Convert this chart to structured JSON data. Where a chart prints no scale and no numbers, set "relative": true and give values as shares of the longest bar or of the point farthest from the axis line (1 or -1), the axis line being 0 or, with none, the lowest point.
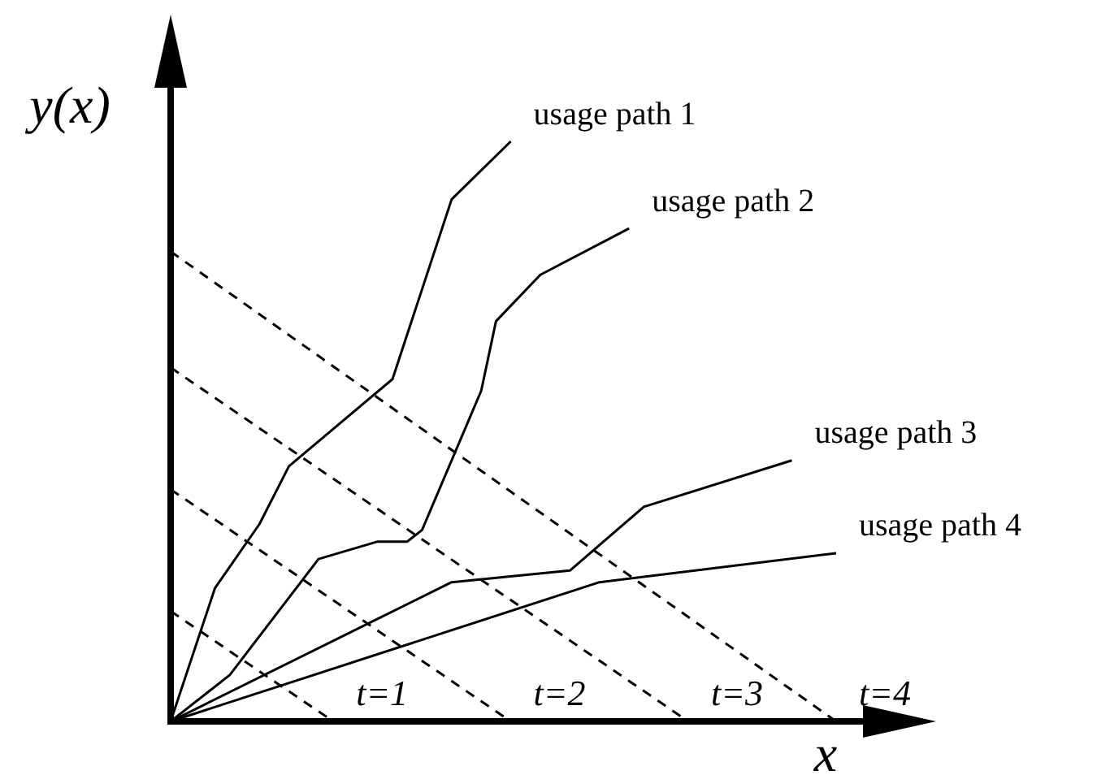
{
  "chart_data": {
    "type": "line",
    "relative": true,
    "xlabel": "x",
    "ylabel": "y(x)",
    "legend": false,
    "marker": "none",
    "categories": [
      null,
      null,
      null,
      null,
      null,
      null,
      null,
      null,
      null,
      null,
      null,
      null,
      null,
      null,
      null,
      null,
      null,
      null,
      null,
      null,
      null,
      null,
      null,
      null,
      null,
      null,
      null,
      null,
      null,
      null,
      null,
      null,
      null,
      null,
      null,
      null,
      null,
      null,
      null,
      null,
      null,
      null,
      null,
      null,
      null,
      null,
      null,
      null,
      null,
      null,
      null
    ],
    "series": [
      {
        "name": "usage path 1",
        "color": "#000000",
        "values": [
          0,
          null,
          null,
          0.23,
          null,
          null,
          0.34,
          null,
          0.44,
          null,
          null,
          null,
          null,
          null,
          null,
          0.59,
          null,
          null,
          null,
          0.9,
          null,
          null,
          null,
          1,
          null,
          null,
          null,
          null,
          null,
          null,
          null,
          null,
          null,
          null,
          null,
          null,
          null,
          null,
          null,
          null,
          null,
          null,
          null,
          null,
          null,
          null,
          null,
          null,
          null,
          null,
          null
        ]
      },
      {
        "name": "usage path 2",
        "color": "#000000",
        "values": [
          0,
          null,
          null,
          null,
          0.08,
          null,
          null,
          null,
          null,
          null,
          0.28,
          null,
          null,
          null,
          0.31,
          null,
          0.31,
          0.33,
          null,
          null,
          null,
          0.57,
          0.69,
          null,
          null,
          0.77,
          null,
          null,
          null,
          null,
          null,
          0.85,
          null,
          null,
          null,
          null,
          null,
          null,
          null,
          null,
          null,
          null,
          null,
          null,
          null,
          null,
          null,
          null,
          null,
          null,
          null
        ]
      },
      {
        "name": "usage path 3",
        "color": "#000000",
        "values": [
          0,
          null,
          null,
          null,
          null,
          null,
          null,
          null,
          null,
          null,
          null,
          null,
          null,
          null,
          null,
          null,
          null,
          null,
          null,
          0.24,
          null,
          null,
          null,
          null,
          null,
          null,
          null,
          0.26,
          null,
          null,
          null,
          null,
          0.37,
          null,
          null,
          null,
          null,
          null,
          null,
          null,
          null,
          null,
          0.45,
          null,
          null,
          null,
          null,
          null,
          null,
          null,
          null
        ]
      },
      {
        "name": "usage path 4",
        "color": "#000000",
        "values": [
          0,
          null,
          null,
          null,
          null,
          null,
          null,
          null,
          null,
          null,
          null,
          null,
          null,
          null,
          null,
          null,
          null,
          null,
          null,
          null,
          null,
          null,
          null,
          null,
          null,
          null,
          null,
          null,
          null,
          0.24,
          null,
          null,
          null,
          null,
          null,
          null,
          null,
          null,
          null,
          null,
          null,
          null,
          null,
          null,
          null,
          0.29,
          null,
          null,
          null,
          null,
          null
        ]
      },
      {
        "name": "t=1",
        "color": "#000000",
        "line_style": "dashed",
        "values": [
          0.19,
          null,
          null,
          null,
          null,
          null,
          null,
          null,
          null,
          null,
          null,
          0,
          null,
          null,
          null,
          null,
          null,
          null,
          null,
          null,
          null,
          null,
          null,
          null,
          null,
          null,
          null,
          null,
          null,
          null,
          null,
          null,
          null,
          null,
          null,
          null,
          null,
          null,
          null,
          null,
          null,
          null,
          null,
          null,
          null,
          null,
          null,
          null,
          null,
          null,
          null
        ]
      },
      {
        "name": "t=2",
        "color": "#000000",
        "line_style": "dashed",
        "values": [
          0.4,
          null,
          null,
          null,
          null,
          null,
          null,
          null,
          null,
          null,
          null,
          null,
          null,
          null,
          null,
          null,
          null,
          null,
          null,
          null,
          null,
          null,
          null,
          0,
          null,
          null,
          null,
          null,
          null,
          null,
          null,
          null,
          null,
          null,
          null,
          null,
          null,
          null,
          null,
          null,
          null,
          null,
          null,
          null,
          null,
          null,
          null,
          null,
          null,
          null,
          null
        ]
      },
      {
        "name": "t=3",
        "color": "#000000",
        "line_style": "dashed",
        "values": [
          0.61,
          null,
          null,
          null,
          null,
          null,
          null,
          null,
          null,
          null,
          null,
          null,
          null,
          null,
          null,
          null,
          null,
          null,
          null,
          null,
          null,
          null,
          null,
          null,
          null,
          null,
          null,
          null,
          null,
          null,
          null,
          null,
          null,
          null,
          null,
          0,
          null,
          null,
          null,
          null,
          null,
          null,
          null,
          null,
          null,
          null,
          null,
          null,
          null,
          null,
          null
        ]
      },
      {
        "name": "t=4",
        "color": "#000000",
        "line_style": "dashed",
        "values": [
          0.81,
          null,
          null,
          null,
          null,
          null,
          null,
          null,
          null,
          null,
          null,
          null,
          null,
          null,
          null,
          null,
          null,
          null,
          null,
          null,
          null,
          null,
          null,
          null,
          null,
          null,
          null,
          null,
          null,
          null,
          null,
          null,
          null,
          null,
          null,
          null,
          null,
          null,
          null,
          null,
          null,
          null,
          null,
          null,
          null,
          0,
          null,
          null,
          null,
          null,
          null
        ]
      }
    ]
  }
}
